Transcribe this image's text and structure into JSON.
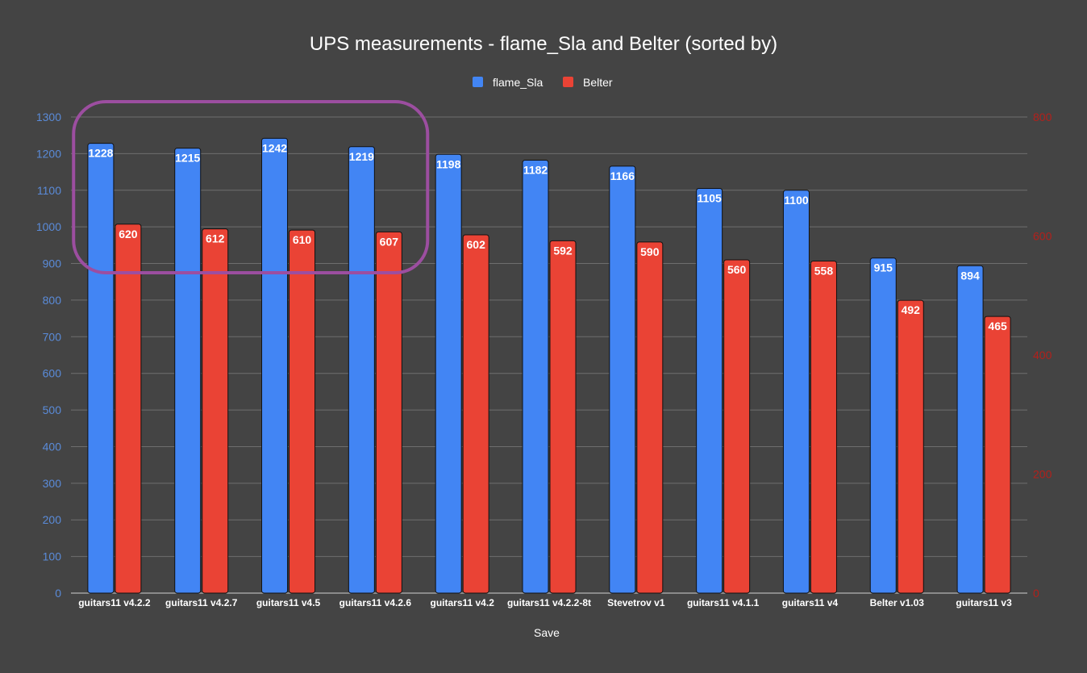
{
  "chart_data": {
    "type": "bar",
    "title": "UPS measurements - flame_Sla and Belter (sorted by)",
    "xlabel": "Save",
    "ylabel": "",
    "categories": [
      "guitars11 v4.2.2",
      "guitars11 v4.2.7",
      "guitars11 v4.5",
      "guitars11 v4.2.6",
      "guitars11 v4.2",
      "guitars11 v4.2.2-8t",
      "Stevetrov v1",
      "guitars11 v4.1.1",
      "guitars11 v4",
      "Belter v1.03",
      "guitars11 v3"
    ],
    "series": [
      {
        "name": "flame_Sla",
        "axis": "left",
        "color": "#4285f4",
        "values": [
          1228,
          1215,
          1242,
          1219,
          1198,
          1182,
          1166,
          1105,
          1100,
          915,
          894
        ]
      },
      {
        "name": "Belter",
        "axis": "right",
        "color": "#ea4335",
        "values": [
          620,
          612,
          610,
          607,
          602,
          592,
          590,
          560,
          558,
          492,
          465
        ]
      }
    ],
    "ylim_left": [
      0,
      1300
    ],
    "yticks_left": [
      "0",
      "100",
      "200",
      "300",
      "400",
      "500",
      "600",
      "700",
      "800",
      "900",
      "1000",
      "1100",
      "1200",
      "1300"
    ],
    "ylim_right": [
      0,
      800
    ],
    "yticks_right": [
      "0",
      "200",
      "400",
      "600",
      "800"
    ],
    "left_axis_color": "#5a8bd9",
    "right_axis_color": "#b3201b",
    "grid": true,
    "legend_position": "top-center",
    "highlight": {
      "shape": "rounded-rectangle",
      "color": "#9c4ea0",
      "covers_categories": [
        "guitars11 v4.2.2",
        "guitars11 v4.2.7",
        "guitars11 v4.5",
        "guitars11 v4.2.6"
      ]
    }
  }
}
